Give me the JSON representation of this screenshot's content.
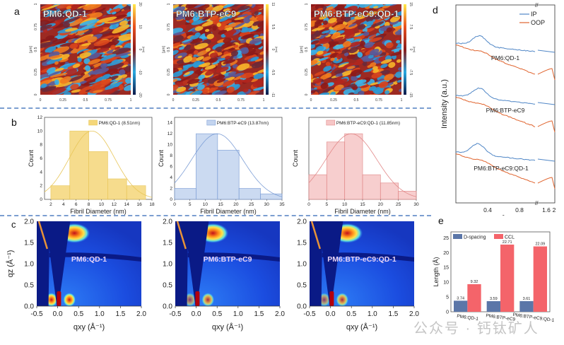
{
  "panels": {
    "a": "a",
    "b": "b",
    "c": "c",
    "d": "d",
    "e": "e"
  },
  "watermark": "公众号 · 钙钛矿人",
  "chart_data": [
    {
      "id": "afm-1",
      "type": "heatmap",
      "title": "PM6:QD-1",
      "xlabel": "",
      "ylabel": "[µm]",
      "xticks": [
        "0",
        "0.25",
        "0.5",
        "0.75",
        "1"
      ],
      "yticks": [
        "0",
        "0.25",
        "0.5",
        "0.75",
        "1"
      ],
      "colorbar_ticks": [
        "20",
        "10",
        "0",
        "-10",
        "-20"
      ],
      "colorbar_label": "[nm]"
    },
    {
      "id": "afm-2",
      "type": "heatmap",
      "title": "PM6:BTP-eC9",
      "xlabel": "",
      "ylabel": "[µm]",
      "xticks": [
        "0",
        "0.25",
        "0.5",
        "0.75",
        "1"
      ],
      "yticks": [
        "0",
        "0.25",
        "0.5",
        "0.75",
        "1"
      ],
      "colorbar_ticks": [
        "11",
        "5.5",
        "0",
        "-5.5",
        "-11"
      ],
      "colorbar_label": "[nm]"
    },
    {
      "id": "afm-3",
      "type": "heatmap",
      "title": "PM6:BTP-eC9:QD-1",
      "xlabel": "",
      "ylabel": "[µm]",
      "xticks": [
        "0",
        "0.25",
        "0.5",
        "0.75",
        "1"
      ],
      "yticks": [
        "0",
        "0.25",
        "0.5",
        "0.75",
        "1"
      ],
      "colorbar_ticks": [
        "15",
        "7.5",
        "0",
        "-7.5",
        "-15"
      ],
      "colorbar_label": "[nm]"
    },
    {
      "id": "hist-1",
      "type": "bar",
      "legend": "PM6:QD-1 (8.51nm)",
      "xlabel": "Fibril Diameter (nm)",
      "ylabel": "Count",
      "bins": [
        [
          2,
          5
        ],
        [
          5,
          8
        ],
        [
          8,
          11
        ],
        [
          11,
          14
        ],
        [
          14,
          17
        ]
      ],
      "values": [
        2,
        10,
        7,
        3,
        2
      ],
      "fit_mean": 8.51,
      "fit_peak": 10,
      "xlim": [
        1,
        18
      ],
      "ylim": [
        0,
        12
      ],
      "xticks": [
        2,
        4,
        6,
        8,
        10,
        12,
        14,
        16,
        18
      ],
      "yticks": [
        0,
        2,
        4,
        6,
        8,
        10,
        12
      ],
      "color": "#f5d77a",
      "edge": "#e8c65a"
    },
    {
      "id": "hist-2",
      "type": "bar",
      "legend": "PM6:BTP-eC9 (13.87nm)",
      "xlabel": "Fibril Diameter (nm)",
      "ylabel": "Count",
      "bins": [
        [
          0,
          7
        ],
        [
          7,
          14
        ],
        [
          14,
          21
        ],
        [
          21,
          28
        ],
        [
          28,
          35
        ]
      ],
      "values": [
        2,
        12,
        9,
        2,
        1
      ],
      "fit_mean": 13.87,
      "fit_peak": 12,
      "xlim": [
        0,
        35
      ],
      "ylim": [
        0,
        15
      ],
      "xticks": [
        0,
        5,
        10,
        15,
        20,
        25,
        30,
        35
      ],
      "yticks": [
        0,
        2,
        4,
        6,
        8,
        10,
        12,
        14
      ],
      "color": "#c3d4ef",
      "edge": "#7e9fd6"
    },
    {
      "id": "hist-3",
      "type": "bar",
      "legend": "PM6:BTP-eC9:QD-1 (11.85nm)",
      "xlabel": "Fibril Diameter (nm)",
      "ylabel": "Count",
      "bins": [
        [
          0,
          5
        ],
        [
          5,
          10
        ],
        [
          10,
          15
        ],
        [
          15,
          20
        ],
        [
          20,
          25
        ],
        [
          25,
          30
        ]
      ],
      "values": [
        3,
        7,
        8,
        3,
        2,
        1
      ],
      "fit_mean": 11.85,
      "fit_peak": 8,
      "xlim": [
        0,
        30
      ],
      "ylim": [
        0,
        10
      ],
      "xticks": [
        0,
        5,
        10,
        15,
        20,
        25,
        30
      ],
      "yticks": [],
      "color": "#f6c6c6",
      "edge": "#e28a8a"
    },
    {
      "id": "giwaxs-1",
      "type": "heatmap",
      "label": "PM6:QD-1",
      "xlabel": "q_xy (Å^-1)",
      "ylabel": "q_z (Å^-1)",
      "xlim": [
        -0.5,
        2.0
      ],
      "ylim": [
        0,
        2.0
      ],
      "xticks": [
        "-0.5",
        "0.0",
        "0.5",
        "1.0",
        "1.5",
        "2.0"
      ],
      "yticks": [
        "0.0",
        "0.5",
        "1.0",
        "1.5",
        "2.0"
      ]
    },
    {
      "id": "giwaxs-2",
      "type": "heatmap",
      "label": "PM6:BTP-eC9",
      "xlabel": "q_xy (Å^-1)",
      "ylabel": "",
      "xlim": [
        -0.5,
        2.0
      ],
      "ylim": [
        0,
        2.0
      ],
      "xticks": [
        "-0.5",
        "0.0",
        "0.5",
        "1.0",
        "1.5",
        "2.0"
      ],
      "yticks": [
        "0.0",
        "0.5",
        "1.0",
        "1.5",
        "2.0"
      ]
    },
    {
      "id": "giwaxs-3",
      "type": "heatmap",
      "label": "PM6:BTP-eC9:QD-1",
      "xlabel": "q_xy (Å^-1)",
      "ylabel": "",
      "xlim": [
        -0.5,
        2.0
      ],
      "ylim": [
        0,
        2.0
      ],
      "xticks": [
        "-0.5",
        "0.0",
        "0.5",
        "1.0",
        "1.5",
        "2.0"
      ],
      "yticks": [
        "0.0",
        "0.5",
        "1.0",
        "1.5",
        "2.0"
      ]
    },
    {
      "id": "linecuts",
      "type": "line",
      "xlabel": "q (Å^-1)",
      "ylabel": "Intensity (a.u.)",
      "xticks": [
        "0.4",
        "0.8",
        "1.6",
        "2"
      ],
      "legend": [
        {
          "name": "IP",
          "color": "#4f86c6"
        },
        {
          "name": "OOP",
          "color": "#e0642e"
        }
      ],
      "samples": [
        "PM6:QD-1",
        "PM6:BTP-eC9",
        "PM6:BTP-eC9:QD-1"
      ]
    },
    {
      "id": "bars-e",
      "type": "bar",
      "xlabel": "",
      "ylabel": "Length (Å)",
      "categories": [
        "PM6:QD-1",
        "PM6:BTP-eC9",
        "PM6:BTP-eC9:QD-1"
      ],
      "series": [
        {
          "name": "D-spacing",
          "color": "#5b76a8",
          "values": [
            3.74,
            3.59,
            3.61
          ]
        },
        {
          "name": "CCL",
          "color": "#f4646a",
          "values": [
            9.32,
            22.71,
            22.09
          ]
        }
      ],
      "ylim": [
        0,
        27
      ],
      "yticks": [
        0,
        5,
        10,
        15,
        20,
        25
      ]
    }
  ]
}
